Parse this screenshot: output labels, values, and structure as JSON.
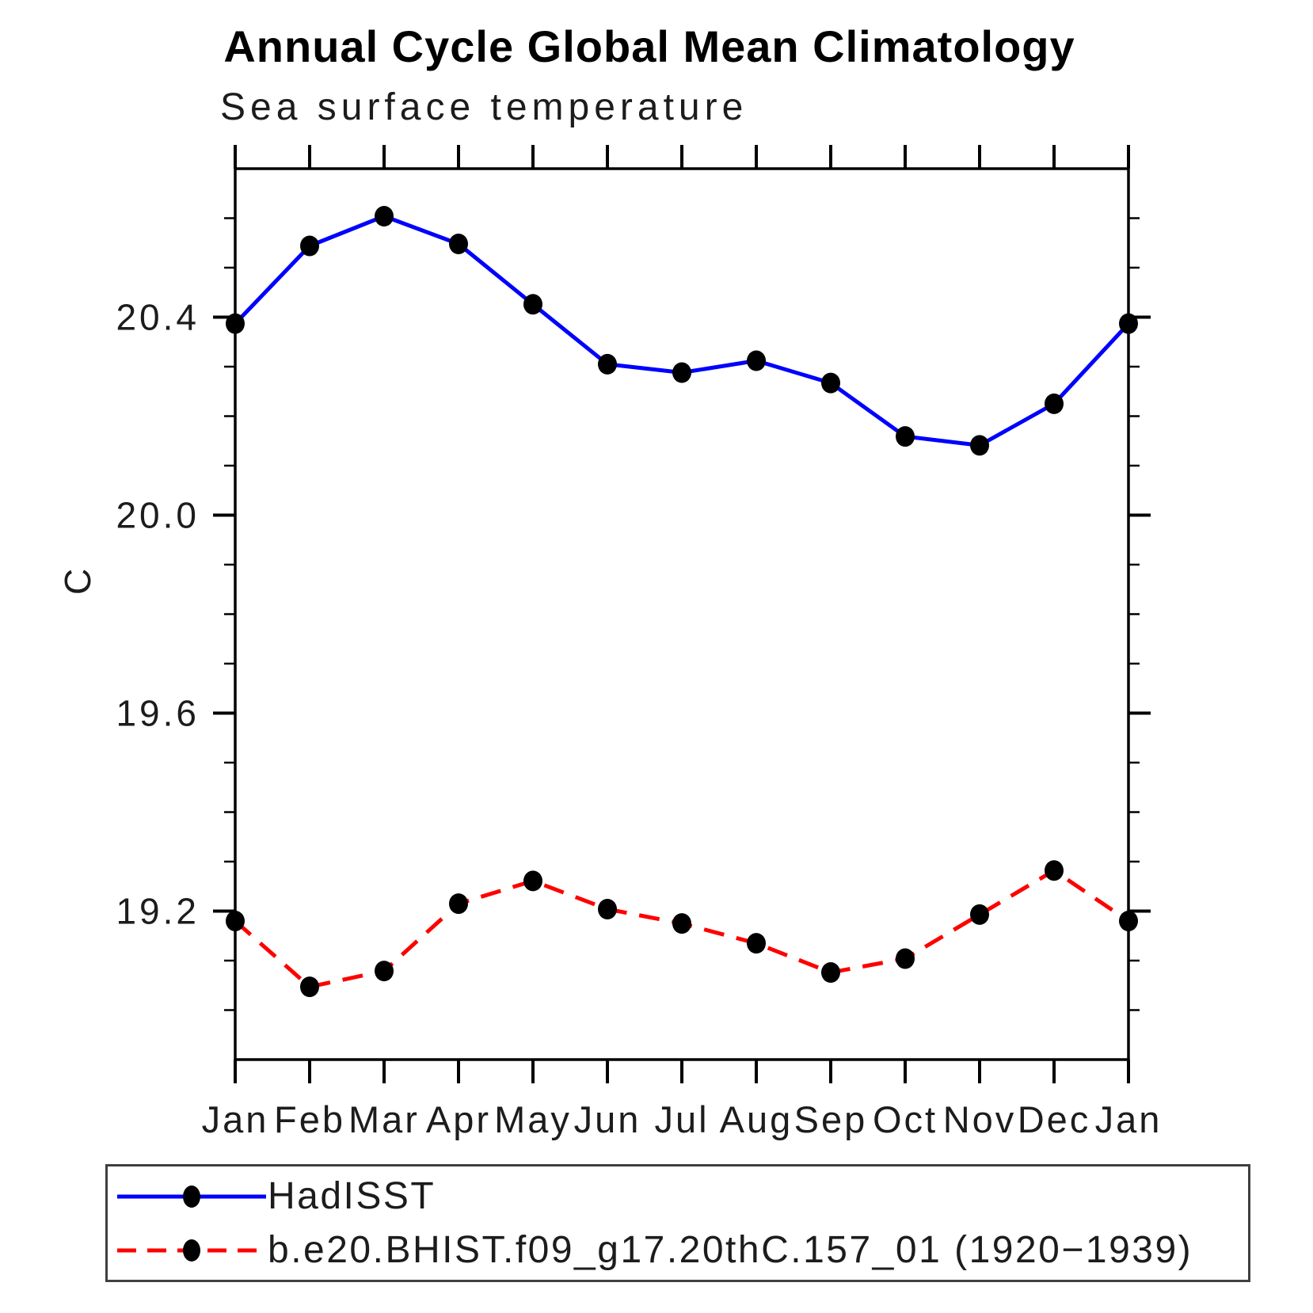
{
  "title": "Annual Cycle Global Mean Climatology",
  "subtitle": "Sea surface temperature",
  "chart_data": {
    "type": "line",
    "title": "Annual Cycle Global Mean Climatology",
    "subtitle": "Sea surface temperature",
    "xlabel": "",
    "ylabel": "C",
    "categories": [
      "Jan",
      "Feb",
      "Mar",
      "Apr",
      "May",
      "Jun",
      "Jul",
      "Aug",
      "Sep",
      "Oct",
      "Nov",
      "Dec",
      "Jan"
    ],
    "ylim": [
      18.9,
      20.7
    ],
    "ytick_major": [
      19.2,
      19.6,
      20.0,
      20.4
    ],
    "ytick_minor_step": 0.1,
    "grid": false,
    "legend_position": "bottom-left",
    "series": [
      {
        "name": "HadISST",
        "color": "#0000ff",
        "line_style": "solid",
        "marker": "filled-circle",
        "marker_color": "#000000",
        "values": [
          20.387,
          20.544,
          20.604,
          20.548,
          20.426,
          20.305,
          20.288,
          20.312,
          20.267,
          20.159,
          20.141,
          20.225,
          20.387
        ]
      },
      {
        "name": "b.e20.BHIST.f09_g17.20thC.157_01 (1920−1939)",
        "color": "#ff0000",
        "line_style": "dashed",
        "marker": "filled-circle",
        "marker_color": "#000000",
        "values": [
          19.18,
          19.047,
          19.079,
          19.215,
          19.261,
          19.204,
          19.175,
          19.135,
          19.076,
          19.104,
          19.193,
          19.282,
          19.18
        ]
      }
    ]
  }
}
